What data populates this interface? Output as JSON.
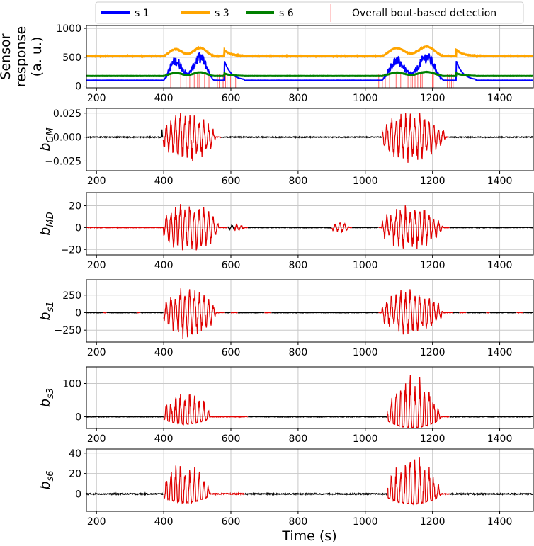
{
  "chart_data": {
    "type": "line",
    "xlabel": "Time (s)",
    "xlim": [
      170,
      1500
    ],
    "xticks": [
      200,
      400,
      600,
      800,
      1000,
      1200,
      1400
    ],
    "grid": true,
    "legend": {
      "placement": "top",
      "entries": [
        {
          "label": "s 1",
          "color": "#0000ff"
        },
        {
          "label": "s 3",
          "color": "#ffa500"
        },
        {
          "label": "s 6",
          "color": "#008000"
        },
        {
          "label": "Overall bout-based detection",
          "color": "#ff9999"
        }
      ]
    },
    "panels": [
      {
        "id": "sensor",
        "ylabel_lines": [
          "Sensor",
          "response",
          "(a. u.)"
        ],
        "ylim": [
          -30,
          1050
        ],
        "yticks": [
          0,
          500,
          1000
        ],
        "ytick_labels": [
          "0",
          "500",
          "1000"
        ],
        "series": [
          {
            "name": "s 1",
            "color": "#0000ff",
            "baseline": 100,
            "bouts": [
              [
                400,
                580,
                700
              ],
              [
                1050,
                1270,
                700
              ]
            ]
          },
          {
            "name": "s 3",
            "color": "#ffa500",
            "baseline": 520,
            "bouts": [
              [
                400,
                580,
                200
              ],
              [
                1050,
                1270,
                230
              ]
            ]
          },
          {
            "name": "s 6",
            "color": "#008000",
            "baseline": 175,
            "bouts": [
              [
                400,
                580,
                90
              ],
              [
                1050,
                1270,
                100
              ]
            ]
          }
        ],
        "detections": [
          [
            400,
            620
          ],
          [
            1040,
            1270
          ]
        ]
      },
      {
        "id": "bGM",
        "ylabel": "b",
        "ylabel_sub": "GM",
        "ylim": [
          -0.035,
          0.03
        ],
        "yticks": [
          -0.025,
          0,
          0.025
        ],
        "ytick_labels": [
          "−0.025",
          "0.000",
          "0.025"
        ],
        "amplitude": 0.028,
        "bursts": [
          [
            395,
            580,
            0.028
          ],
          [
            1050,
            1270,
            0.028
          ]
        ],
        "noise": 0.0005,
        "red_segments": [
          [
            398,
            570
          ],
          [
            1050,
            1245
          ]
        ]
      },
      {
        "id": "bMD",
        "ylabel": "b",
        "ylabel_sub": "MD",
        "ylim": [
          -25,
          32
        ],
        "yticks": [
          -20,
          0,
          20
        ],
        "ytick_labels": [
          "−20",
          "0",
          "20"
        ],
        "amplitude": 28,
        "bursts": [
          [
            400,
            590,
            26
          ],
          [
            900,
            960,
            5
          ],
          [
            1050,
            1260,
            22
          ],
          [
            590,
            650,
            3
          ]
        ],
        "noise": 0.3,
        "red_segments": [
          [
            170,
            400
          ],
          [
            400,
            590
          ],
          [
            610,
            650
          ],
          [
            900,
            960
          ],
          [
            1040,
            1250
          ]
        ]
      },
      {
        "id": "bs1",
        "ylabel": "b",
        "ylabel_sub": "s1",
        "ylim": [
          -420,
          470
        ],
        "yticks": [
          -250,
          0,
          250
        ],
        "ytick_labels": [
          "−250",
          "0",
          "250"
        ],
        "amplitude": 420,
        "bursts": [
          [
            400,
            580,
            400
          ],
          [
            1050,
            1260,
            360
          ]
        ],
        "noise": 4,
        "red_segments": [
          [
            220,
            230
          ],
          [
            320,
            330
          ],
          [
            400,
            580
          ],
          [
            600,
            620
          ],
          [
            700,
            720
          ],
          [
            1040,
            1260
          ],
          [
            1280,
            1300
          ],
          [
            1360,
            1370
          ],
          [
            1450,
            1470
          ]
        ]
      },
      {
        "id": "bs3",
        "ylabel": "b",
        "ylabel_sub": "s3",
        "ylim": [
          -35,
          150
        ],
        "yticks": [
          0,
          100
        ],
        "ytick_labels": [
          "0",
          "100"
        ],
        "amplitude": 95,
        "bursts": [
          [
            400,
            560,
            85
          ],
          [
            1065,
            1250,
            130
          ]
        ],
        "noise": 1,
        "red_segments": [
          [
            400,
            560
          ],
          [
            560,
            650
          ],
          [
            1065,
            1250
          ]
        ]
      },
      {
        "id": "bs6",
        "ylabel": "b",
        "ylabel_sub": "s6",
        "ylim": [
          -17,
          44
        ],
        "yticks": [
          0,
          20,
          40
        ],
        "ytick_labels": [
          "0",
          "20",
          "40"
        ],
        "amplitude": 35,
        "bursts": [
          [
            400,
            560,
            33
          ],
          [
            1065,
            1250,
            38
          ]
        ],
        "noise": 0.6,
        "red_segments": [
          [
            400,
            560
          ],
          [
            560,
            640
          ],
          [
            1065,
            1250
          ]
        ]
      }
    ]
  },
  "colors": {
    "trace": "#000000",
    "detected": "#e00000",
    "grid": "#c8c8c8"
  }
}
